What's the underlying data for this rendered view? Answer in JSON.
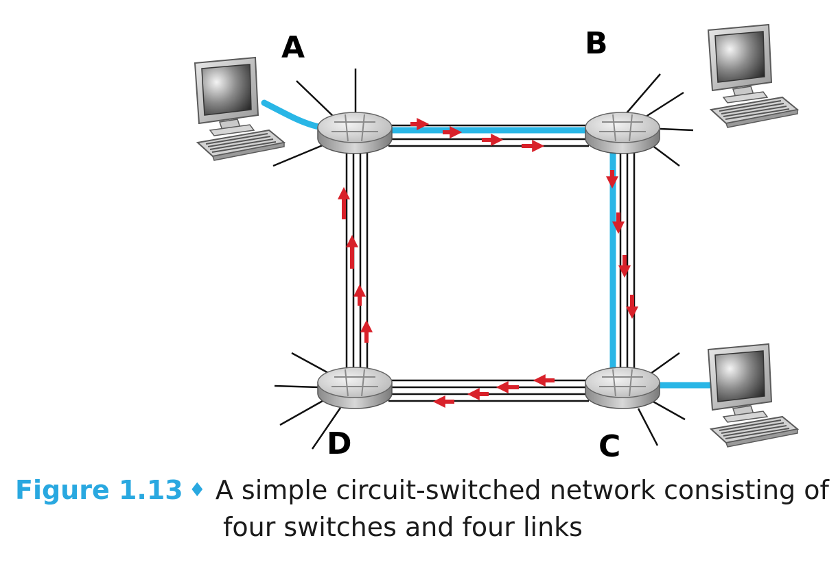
{
  "nodes": {
    "A": {
      "label": "A"
    },
    "B": {
      "label": "B"
    },
    "C": {
      "label": "C"
    },
    "D": {
      "label": "D"
    }
  },
  "colors": {
    "circuit": "#29b6e6",
    "arrow": "#d8212a",
    "caption_accent": "#29a8e0"
  },
  "caption": {
    "figure_label": "Figure 1.13",
    "line1": "A simple circuit-switched network consisting of",
    "line2": "four switches and four links"
  }
}
